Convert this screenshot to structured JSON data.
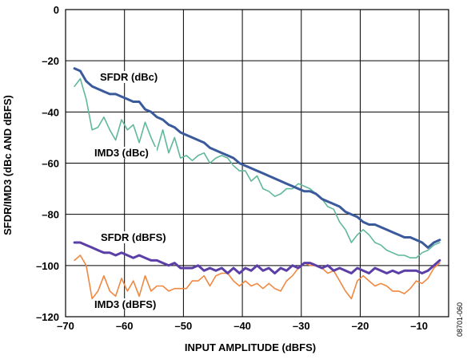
{
  "chart_data": {
    "type": "line",
    "xlabel": "INPUT AMPLITUDE (dBFS)",
    "ylabel": "SFDR/IMD3 (dBc AND dBFS)",
    "xlim": [
      -70,
      -5
    ],
    "ylim": [
      -120,
      0
    ],
    "xticks": [
      -70,
      -60,
      -50,
      -40,
      -30,
      -20,
      -10
    ],
    "yticks": [
      0,
      -20,
      -40,
      -60,
      -80,
      -100,
      -120
    ],
    "grid": true,
    "figure_id": "08701-060",
    "series": [
      {
        "name": "SFDR (dBc)",
        "color": "#3a5a9c",
        "x": [
          -68.5,
          -67.5,
          -66.5,
          -65.5,
          -64.5,
          -63.5,
          -62.5,
          -61.5,
          -60.5,
          -59.5,
          -58.5,
          -57.5,
          -56.5,
          -55.5,
          -54.5,
          -53.5,
          -52.5,
          -51.5,
          -50.5,
          -49.5,
          -48.5,
          -47.5,
          -46.5,
          -45.5,
          -44.5,
          -43.5,
          -42.5,
          -41.5,
          -40.5,
          -39.5,
          -38.5,
          -37.5,
          -36.5,
          -35.5,
          -34.5,
          -33.5,
          -32.5,
          -31.5,
          -30.5,
          -29.5,
          -28.5,
          -27.5,
          -26.5,
          -25.5,
          -24.5,
          -23.5,
          -22.5,
          -21.5,
          -20.5,
          -19.5,
          -18.5,
          -17.5,
          -16.5,
          -15.5,
          -14.5,
          -13.5,
          -12.5,
          -11.5,
          -10.5,
          -9.5,
          -8.5,
          -7.5,
          -6.5
        ],
        "y": [
          -23,
          -24,
          -28,
          -30,
          -31,
          -32,
          -33,
          -33,
          -34,
          -35,
          -36,
          -36,
          -39,
          -40,
          -42,
          -43,
          -45,
          -46,
          -48,
          -49,
          -50,
          -51,
          -52,
          -54,
          -55,
          -56,
          -57,
          -58,
          -60,
          -61,
          -62,
          -63,
          -64,
          -65,
          -66,
          -67,
          -68,
          -69,
          -70,
          -71,
          -71,
          -72,
          -74,
          -75,
          -76,
          -77,
          -79,
          -80,
          -81,
          -83,
          -84,
          -84,
          -85,
          -86,
          -87,
          -88,
          -89,
          -89,
          -90,
          -91,
          -93,
          -91,
          -90
        ]
      },
      {
        "name": "IMD3 (dBc)",
        "color": "#5fb89a",
        "x": [
          -68.5,
          -67.5,
          -66.5,
          -65.5,
          -64.5,
          -63.5,
          -62.5,
          -61.5,
          -60.5,
          -59.5,
          -58.5,
          -57.5,
          -56.5,
          -55.5,
          -54.5,
          -53.5,
          -52.5,
          -51.5,
          -50.5,
          -49.5,
          -48.5,
          -47.5,
          -46.5,
          -45.5,
          -44.5,
          -43.5,
          -42.5,
          -41.5,
          -40.5,
          -39.5,
          -38.5,
          -37.5,
          -36.5,
          -35.5,
          -34.5,
          -33.5,
          -32.5,
          -31.5,
          -30.5,
          -29.5,
          -28.5,
          -27.5,
          -26.5,
          -25.5,
          -24.5,
          -23.5,
          -22.5,
          -21.5,
          -20.5,
          -19.5,
          -18.5,
          -17.5,
          -16.5,
          -15.5,
          -14.5,
          -13.5,
          -12.5,
          -11.5,
          -10.5,
          -9.5,
          -8.5,
          -7.5,
          -6.5
        ],
        "y": [
          -30,
          -27,
          -35,
          -47,
          -46,
          -42,
          -47,
          -51,
          -43,
          -47,
          -45,
          -52,
          -44,
          -50,
          -55,
          -47,
          -56,
          -50,
          -58,
          -57,
          -59,
          -57,
          -56,
          -60,
          -58,
          -57,
          -58,
          -61,
          -63,
          -63,
          -67,
          -65,
          -70,
          -71,
          -73,
          -72,
          -70,
          -70,
          -68,
          -69,
          -70,
          -72,
          -74,
          -77,
          -78,
          -83,
          -86,
          -91,
          -88,
          -86,
          -88,
          -91,
          -92,
          -94,
          -95,
          -96,
          -96,
          -97,
          -97,
          -95,
          -94,
          -92,
          -91
        ]
      },
      {
        "name": "SFDR (dBFS)",
        "color": "#5b3ea6",
        "x": [
          -68.5,
          -67.5,
          -66.5,
          -65.5,
          -64.5,
          -63.5,
          -62.5,
          -61.5,
          -60.5,
          -59.5,
          -58.5,
          -57.5,
          -56.5,
          -55.5,
          -54.5,
          -53.5,
          -52.5,
          -51.5,
          -50.5,
          -49.5,
          -48.5,
          -47.5,
          -46.5,
          -45.5,
          -44.5,
          -43.5,
          -42.5,
          -41.5,
          -40.5,
          -39.5,
          -38.5,
          -37.5,
          -36.5,
          -35.5,
          -34.5,
          -33.5,
          -32.5,
          -31.5,
          -30.5,
          -29.5,
          -28.5,
          -27.5,
          -26.5,
          -25.5,
          -24.5,
          -23.5,
          -22.5,
          -21.5,
          -20.5,
          -19.5,
          -18.5,
          -17.5,
          -16.5,
          -15.5,
          -14.5,
          -13.5,
          -12.5,
          -11.5,
          -10.5,
          -9.5,
          -8.5,
          -7.5,
          -6.5
        ],
        "y": [
          -91,
          -91,
          -92,
          -93,
          -94,
          -95,
          -95,
          -96,
          -95,
          -96,
          -97,
          -96,
          -97,
          -98,
          -98,
          -99,
          -100,
          -99,
          -101,
          -101,
          -101,
          -100,
          -102,
          -101,
          -102,
          -101,
          -103,
          -101,
          -103,
          -101,
          -102,
          -100,
          -102,
          -101,
          -103,
          -101,
          -102,
          -100,
          -101,
          -99,
          -99,
          -100,
          -101,
          -100,
          -102,
          -101,
          -102,
          -103,
          -101,
          -102,
          -103,
          -101,
          -102,
          -103,
          -102,
          -103,
          -102,
          -102,
          -102,
          -103,
          -102,
          -100,
          -98
        ]
      },
      {
        "name": "IMD3 (dBFS)",
        "color": "#f08840",
        "x": [
          -68.5,
          -67.5,
          -66.5,
          -65.5,
          -64.5,
          -63.5,
          -62.5,
          -61.5,
          -60.5,
          -59.5,
          -58.5,
          -57.5,
          -56.5,
          -55.5,
          -54.5,
          -53.5,
          -52.5,
          -51.5,
          -50.5,
          -49.5,
          -48.5,
          -47.5,
          -46.5,
          -45.5,
          -44.5,
          -43.5,
          -42.5,
          -41.5,
          -40.5,
          -39.5,
          -38.5,
          -37.5,
          -36.5,
          -35.5,
          -34.5,
          -33.5,
          -32.5,
          -31.5,
          -30.5,
          -29.5,
          -28.5,
          -27.5,
          -26.5,
          -25.5,
          -24.5,
          -23.5,
          -22.5,
          -21.5,
          -20.5,
          -19.5,
          -18.5,
          -17.5,
          -16.5,
          -15.5,
          -14.5,
          -13.5,
          -12.5,
          -11.5,
          -10.5,
          -9.5,
          -8.5,
          -7.5,
          -6.5
        ],
        "y": [
          -98,
          -96,
          -100,
          -113,
          -110,
          -104,
          -110,
          -112,
          -105,
          -110,
          -106,
          -112,
          -104,
          -110,
          -108,
          -108,
          -110,
          -109,
          -109,
          -109,
          -106,
          -106,
          -104,
          -108,
          -104,
          -103,
          -103,
          -106,
          -108,
          -106,
          -108,
          -107,
          -109,
          -107,
          -109,
          -110,
          -106,
          -104,
          -101,
          -99,
          -100,
          -100,
          -101,
          -103,
          -102,
          -106,
          -110,
          -113,
          -106,
          -104,
          -106,
          -108,
          -107,
          -108,
          -110,
          -110,
          -111,
          -109,
          -106,
          -107,
          -105,
          -101,
          -99
        ]
      }
    ],
    "annotations": [
      {
        "text": "SFDR (dBc)",
        "series": "SFDR (dBc)"
      },
      {
        "text": "IMD3 (dBc)",
        "series": "IMD3 (dBc)"
      },
      {
        "text": "SFDR (dBFS)",
        "series": "SFDR (dBFS)"
      },
      {
        "text": "IMD3 (dBFS)",
        "series": "IMD3 (dBFS)"
      }
    ]
  }
}
